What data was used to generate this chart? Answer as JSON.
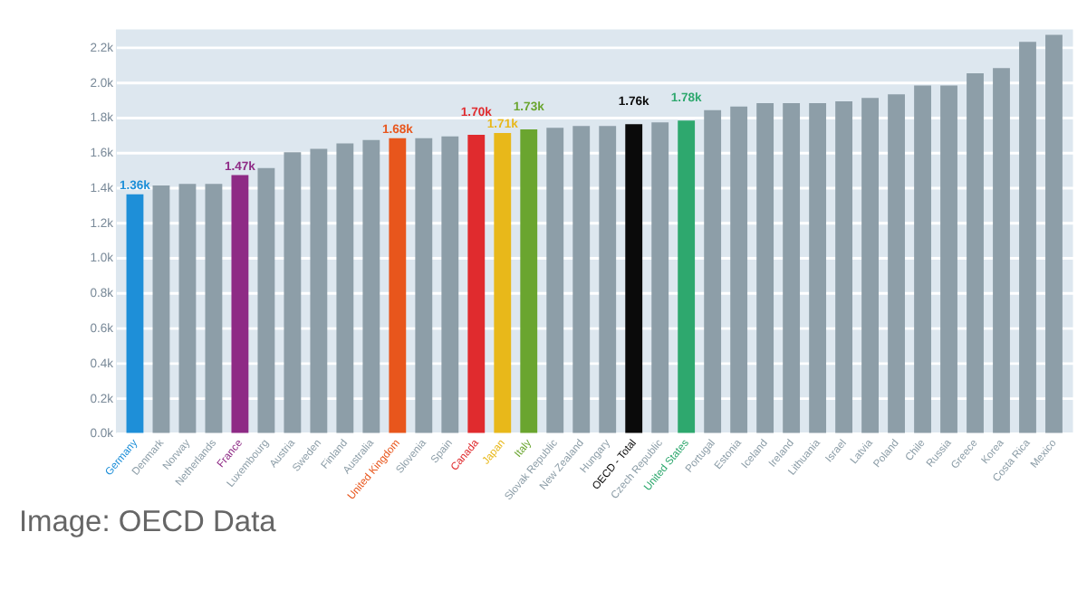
{
  "chart_data": {
    "type": "bar",
    "categories": [
      "Germany",
      "Denmark",
      "Norway",
      "Netherlands",
      "France",
      "Luxembourg",
      "Austria",
      "Sweden",
      "Finland",
      "Australia",
      "United Kingdom",
      "Slovenia",
      "Spain",
      "Canada",
      "Japan",
      "Italy",
      "Slovak Republic",
      "New Zealand",
      "Hungary",
      "OECD - Total",
      "Czech Republic",
      "United States",
      "Portugal",
      "Estonia",
      "Iceland",
      "Ireland",
      "Lithuania",
      "Israel",
      "Latvia",
      "Poland",
      "Chile",
      "Russia",
      "Greece",
      "Korea",
      "Costa Rica",
      "Mexico"
    ],
    "values": [
      1360,
      1410,
      1420,
      1420,
      1470,
      1510,
      1600,
      1620,
      1650,
      1670,
      1680,
      1680,
      1690,
      1700,
      1710,
      1730,
      1740,
      1750,
      1750,
      1760,
      1770,
      1780,
      1840,
      1860,
      1880,
      1880,
      1880,
      1890,
      1910,
      1930,
      1980,
      1980,
      2050,
      2080,
      2230,
      2270
    ],
    "colors": [
      "#1e8fd8",
      "#8d9ea8",
      "#8d9ea8",
      "#8d9ea8",
      "#8e2a85",
      "#8d9ea8",
      "#8d9ea8",
      "#8d9ea8",
      "#8d9ea8",
      "#8d9ea8",
      "#e8561c",
      "#8d9ea8",
      "#8d9ea8",
      "#e02b2e",
      "#e8b81a",
      "#6aa52f",
      "#8d9ea8",
      "#8d9ea8",
      "#8d9ea8",
      "#0a0a0a",
      "#8d9ea8",
      "#2ea86e",
      "#8d9ea8",
      "#8d9ea8",
      "#8d9ea8",
      "#8d9ea8",
      "#8d9ea8",
      "#8d9ea8",
      "#8d9ea8",
      "#8d9ea8",
      "#8d9ea8",
      "#8d9ea8",
      "#8d9ea8",
      "#8d9ea8",
      "#8d9ea8",
      "#8d9ea8"
    ],
    "value_labels": [
      "1.36k",
      null,
      null,
      null,
      "1.47k",
      null,
      null,
      null,
      null,
      null,
      "1.68k",
      null,
      null,
      "1.70k",
      "1.71k",
      "1.73k",
      null,
      null,
      null,
      "1.76k",
      null,
      "1.78k",
      null,
      null,
      null,
      null,
      null,
      null,
      null,
      null,
      null,
      null,
      null,
      null,
      null,
      null
    ],
    "ylim": [
      0,
      2300
    ],
    "yticks": [
      {
        "value": 0,
        "label": "0.0k"
      },
      {
        "value": 200,
        "label": "0.2k"
      },
      {
        "value": 400,
        "label": "0.4k"
      },
      {
        "value": 600,
        "label": "0.6k"
      },
      {
        "value": 800,
        "label": "0.8k"
      },
      {
        "value": 1000,
        "label": "1.0k"
      },
      {
        "value": 1200,
        "label": "1.2k"
      },
      {
        "value": 1400,
        "label": "1.4k"
      },
      {
        "value": 1600,
        "label": "1.6k"
      },
      {
        "value": 1800,
        "label": "1.8k"
      },
      {
        "value": 2000,
        "label": "2.0k"
      },
      {
        "value": 2200,
        "label": "2.2k"
      }
    ],
    "grid": "y",
    "annotations": [
      "Image: OECD Data"
    ]
  }
}
